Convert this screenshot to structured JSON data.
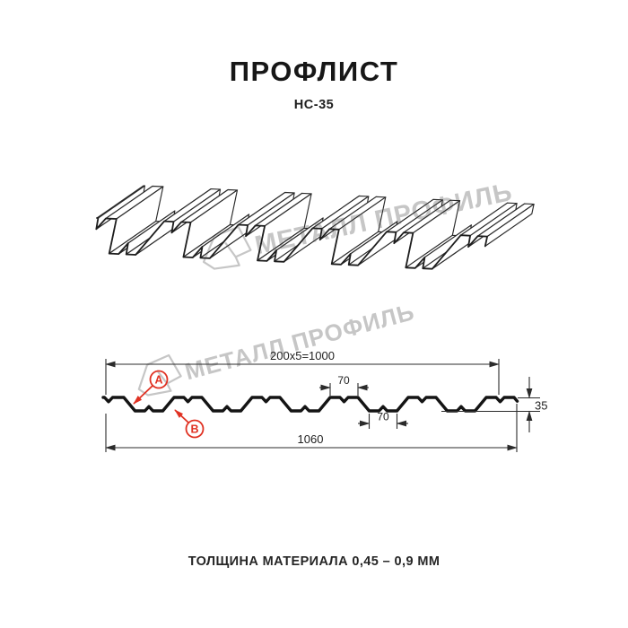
{
  "header": {
    "title": "ПРОФЛИСТ",
    "code": "НС-35"
  },
  "watermark": {
    "brand": "МЕТАЛЛ ПРОФИЛЬ"
  },
  "section": {
    "dim_cover_width": "200x5=1000",
    "dim_top_flange": "70",
    "dim_bottom_flange": "70",
    "dim_height": "35",
    "dim_total_width": "1060",
    "label_a": "A",
    "label_b": "B"
  },
  "footer": {
    "thickness": "ТОЛЩИНА МАТЕРИАЛА 0,45 – 0,9 ММ"
  },
  "colors": {
    "accent_red": "#e03122",
    "line_dark": "#1c1c1c",
    "watermark_gray": "#c6c6c6"
  }
}
